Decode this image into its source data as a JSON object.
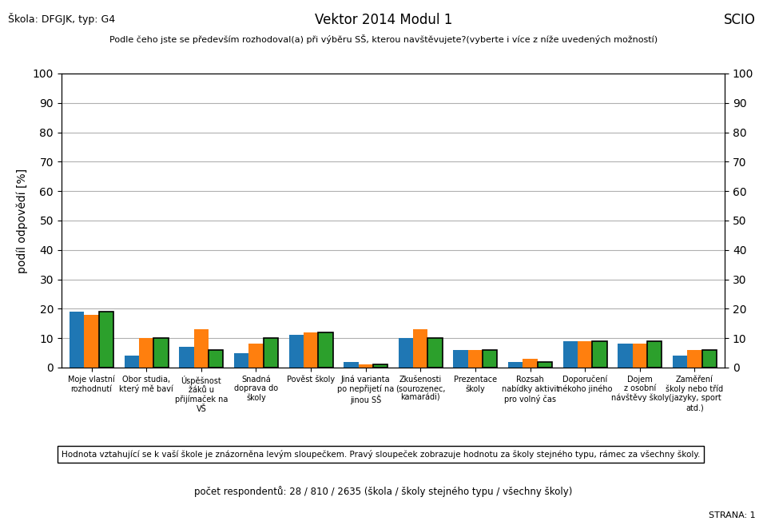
{
  "chart_data": {
    "type": "bar",
    "title": "Vektor 2014 Modul 1",
    "subtitle": "Podle čeho jste se především rozhodoval(a) při výběru SŠ, kterou navštěvujete?(vyberte i více z níže uvedených možností)",
    "y_label": "podíl odpovědí [%]",
    "annotations": [
      "Škola: DFGJK, typ: G4",
      "SCIO",
      "Hodnota vztahující se k vaší škole je znázorněna levým sloupečkem. Pravý sloupeček zobrazuje hodnotu za školy stejného typu, rámec za všechny školy.",
      "počet respondentů: 28 / 810 / 2635 (škola / školy stejného typu / všechny školy)",
      "STRANA: 1"
    ],
    "categories": [
      "Moje vlastní\nrozhodnutí",
      "Obor studia,\nkterý mě baví",
      "Úspěšnost\nžáků u\npřijímaček na\nVŠ",
      "Snadná\ndoprava do\nškoly",
      "Pověst školy",
      "Jiná varianta\npo nepřijetí na\njinou SŠ",
      "Zkušenosti\n(sourozenec,\nkamarádi)",
      "Prezentace\nškoly",
      "Rozsah\nnabídky aktivit\npro volný čas",
      "Doporučení\nnékoho jiného",
      "Dojem\nz osobní\nnávštěvy školy",
      "Zaměření\nškoly nebo tříd\n(jazyky, sport\natd.)"
    ],
    "series": [
      {
        "values": [
          19,
          4,
          7,
          5,
          11,
          2,
          10,
          6,
          2,
          9,
          8,
          4
        ]
      },
      {
        "values": [
          18,
          10,
          13,
          8,
          12,
          1,
          13,
          6,
          3,
          9,
          8,
          6
        ]
      },
      {
        "values": [
          19,
          10,
          6,
          10,
          12,
          1,
          10,
          6,
          2,
          9,
          9,
          6
        ]
      }
    ],
    "ylim": [
      0,
      100
    ],
    "yticks": [
      0,
      10,
      20,
      30,
      40,
      50,
      60,
      70,
      80,
      90,
      100
    ],
    "y2lim": [
      0,
      100
    ],
    "y2ticks": [
      0,
      10,
      20,
      30,
      40,
      50,
      60,
      70,
      80,
      90,
      100
    ],
    "grid": true
  }
}
